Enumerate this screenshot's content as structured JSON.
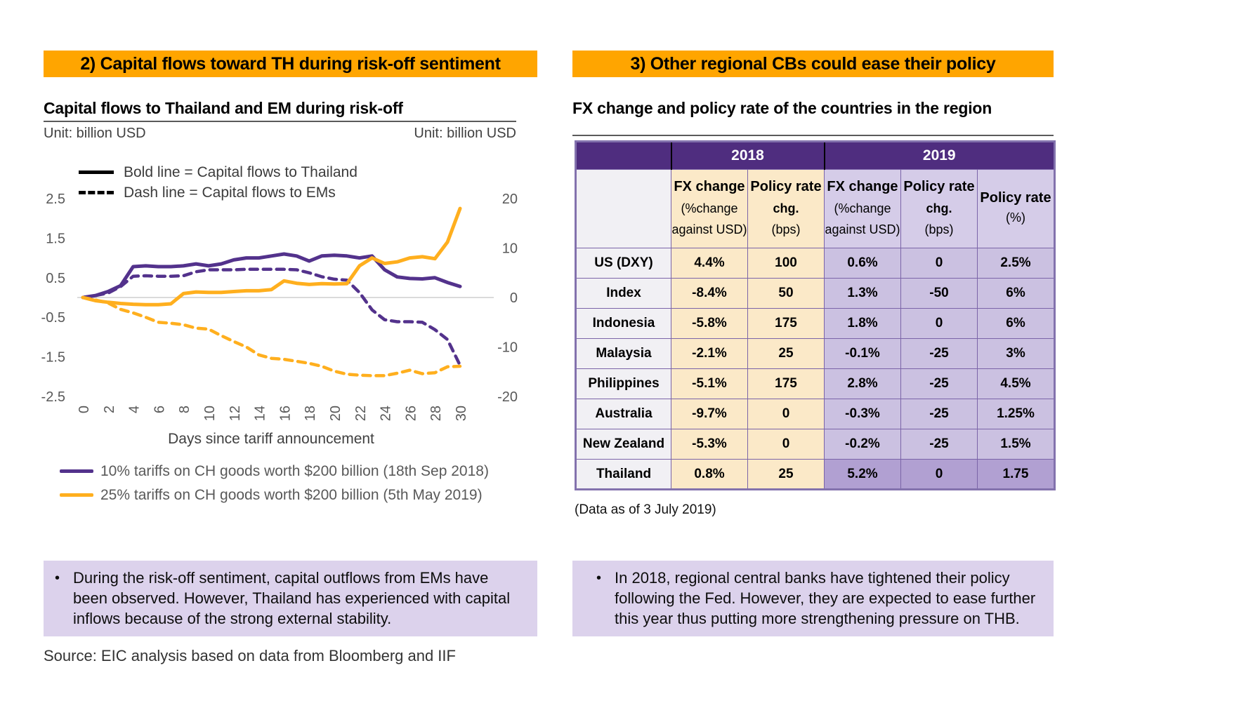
{
  "left_panel": {
    "header": "2) Capital flows toward TH during risk-off sentiment",
    "chart_title": "Capital flows to Thailand and EM during risk-off",
    "unit_left": "Unit: billion USD",
    "unit_right": "Unit: billion USD",
    "inner_legend": {
      "bold": "Bold line = Capital flows to Thailand",
      "dash": "Dash line = Capital flows to EMs"
    },
    "series_legend": [
      {
        "label": "10% tariffs on CH goods worth $200 billion (18th Sep 2018)",
        "color": "#53328C"
      },
      {
        "label": "25% tariffs on CH goods worth $200 billion (5th May 2019)",
        "color": "#FFAF1E"
      }
    ],
    "note_bullet": "•",
    "note": "During the risk-off sentiment, capital outflows from EMs have been observed. However, Thailand has experienced with capital inflows because of the strong external stability.",
    "source": "Source: EIC analysis based on data from Bloomberg and IIF"
  },
  "chart_data": {
    "type": "line",
    "title": "Capital flows to Thailand and EM during risk-off",
    "xlabel": "Days since tariff announcement",
    "x_days": [
      0,
      1,
      2,
      3,
      4,
      5,
      6,
      7,
      8,
      9,
      10,
      11,
      12,
      13,
      14,
      15,
      16,
      17,
      18,
      19,
      20,
      21,
      22,
      23,
      24,
      25,
      26,
      27,
      28,
      29,
      30
    ],
    "x_tick_labels": [
      0,
      2,
      4,
      6,
      8,
      10,
      12,
      14,
      16,
      18,
      20,
      22,
      24,
      26,
      28,
      30
    ],
    "y_axis_left": {
      "unit": "billion USD",
      "ticks": [
        2.5,
        1.5,
        0.5,
        -0.5,
        -1.5,
        -2.5
      ],
      "range": [
        -2.5,
        2.5
      ],
      "applies_to": "bold lines (Thailand)"
    },
    "y_axis_right": {
      "unit": "billion USD",
      "ticks": [
        20,
        10,
        0,
        -10,
        -20
      ],
      "range": [
        -20,
        20
      ],
      "applies_to": "dash lines (EMs)"
    },
    "grid": "zero line only",
    "legend_position": "top-left inside plot",
    "series": [
      {
        "name": "Capital flows to Thailand - 10% tariffs on CH goods worth $200 billion (18th Sep 2018)",
        "style": "solid",
        "axis": "left",
        "color": "#53328C",
        "values": [
          0,
          0.05,
          0.15,
          0.3,
          0.78,
          0.8,
          0.78,
          0.78,
          0.8,
          0.85,
          0.8,
          0.85,
          0.95,
          1.0,
          1.0,
          1.05,
          1.1,
          1.05,
          0.92,
          1.05,
          1.07,
          1.05,
          1.0,
          1.05,
          0.7,
          0.52,
          0.48,
          0.47,
          0.5,
          0.38,
          0.28
        ]
      },
      {
        "name": "Capital flows to EMs - 10% tariffs on CH goods worth $200 billion (18th Sep 2018)",
        "style": "dashed",
        "axis": "right",
        "color": "#53328C",
        "values": [
          0,
          0.4,
          0.9,
          2.2,
          4.3,
          4.4,
          4.3,
          4.3,
          4.4,
          5.2,
          5.6,
          5.6,
          5.6,
          5.7,
          5.7,
          5.7,
          5.7,
          5.6,
          5.0,
          4.2,
          3.7,
          3.5,
          1.0,
          -2.5,
          -4.5,
          -4.9,
          -4.9,
          -5.0,
          -6.5,
          -8.5,
          -13.7
        ]
      },
      {
        "name": "Capital flows to Thailand - 25% tariffs on CH goods worth $200 billion (5th May 2019)",
        "style": "solid",
        "axis": "left",
        "color": "#FFAF1E",
        "values": [
          0,
          -0.08,
          -0.12,
          -0.15,
          -0.17,
          -0.18,
          -0.18,
          -0.16,
          0.1,
          0.14,
          0.13,
          0.13,
          0.15,
          0.17,
          0.17,
          0.2,
          0.42,
          0.36,
          0.33,
          0.35,
          0.34,
          0.35,
          0.8,
          1.0,
          0.86,
          0.9,
          1.0,
          1.03,
          0.98,
          1.4,
          2.25
        ]
      },
      {
        "name": "Capital flows to EMs - 25% tariffs on CH goods worth $200 billion (5th May 2019)",
        "style": "dashed",
        "axis": "right",
        "color": "#FFAF1E",
        "values": [
          0,
          -0.5,
          -1.1,
          -2.4,
          -3.1,
          -4.0,
          -5.0,
          -5.2,
          -5.5,
          -6.2,
          -6.4,
          -7.7,
          -8.9,
          -10.0,
          -11.6,
          -12.3,
          -12.5,
          -12.9,
          -13.3,
          -13.9,
          -14.9,
          -15.5,
          -15.7,
          -15.8,
          -15.8,
          -15.3,
          -14.7,
          -15.4,
          -15.2,
          -14.0,
          -13.9
        ]
      }
    ]
  },
  "right_panel": {
    "header": "3) Other regional CBs could ease their policy",
    "table_title": "FX change and policy rate of the countries in the region",
    "table": {
      "year_groups": [
        {
          "label": "2018",
          "span": 2
        },
        {
          "label": "2019",
          "span": 3
        }
      ],
      "columns": [
        {
          "l1": "FX change",
          "l2": "(%change",
          "l3": "against USD)"
        },
        {
          "l1": "Policy rate",
          "l2": "chg.",
          "l3": "(bps)"
        },
        {
          "l1": "FX change",
          "l2": "(%change",
          "l3": "against USD)"
        },
        {
          "l1": "Policy rate",
          "l2": "chg.",
          "l3": "(bps)"
        },
        {
          "l1": "Policy rate",
          "l2": "(%)"
        }
      ],
      "rows": [
        {
          "country": "US (DXY)",
          "values": [
            "4.4%",
            "100",
            "0.6%",
            "0",
            "2.5%"
          ]
        },
        {
          "country": "Index",
          "values": [
            "-8.4%",
            "50",
            "1.3%",
            "-50",
            "6%"
          ]
        },
        {
          "country": "Indonesia",
          "values": [
            "-5.8%",
            "175",
            "1.8%",
            "0",
            "6%"
          ]
        },
        {
          "country": "Malaysia",
          "values": [
            "-2.1%",
            "25",
            "-0.1%",
            "-25",
            "3%"
          ]
        },
        {
          "country": "Philippines",
          "values": [
            "-5.1%",
            "175",
            "2.8%",
            "-25",
            "4.5%"
          ]
        },
        {
          "country": "Australia",
          "values": [
            "-9.7%",
            "0",
            "-0.3%",
            "-25",
            "1.25%"
          ]
        },
        {
          "country": "New Zealand",
          "values": [
            "-5.3%",
            "0",
            "-0.2%",
            "-25",
            "1.5%"
          ]
        },
        {
          "country": "Thailand",
          "values": [
            "0.8%",
            "25",
            "5.2%",
            "0",
            "1.75"
          ],
          "highlight": true
        }
      ]
    },
    "caption": "(Data as of 3 July 2019)",
    "note_bullet": "•",
    "note": "In 2018, regional central banks have tightened their policy following the Fed. However, they are expected to ease further this year thus putting more strengthening pressure on THB."
  },
  "colors": {
    "header_band": "#FFA500",
    "line_purple": "#53328C",
    "line_orange": "#FFAF1E",
    "note_box_bg": "#DCD2EC",
    "table_year_band_bg": "#4F2D7F",
    "table_2018_bg": "#FBE9C8",
    "table_2019_bg": "#CBC1E1",
    "table_2019_header_bg": "#D5CCE8",
    "table_thailand_2019_bg": "#B1A0D2",
    "table_label_col_bg": "#F1F0F4",
    "table_border": "#7B64A8",
    "axis_text": "#595959"
  }
}
